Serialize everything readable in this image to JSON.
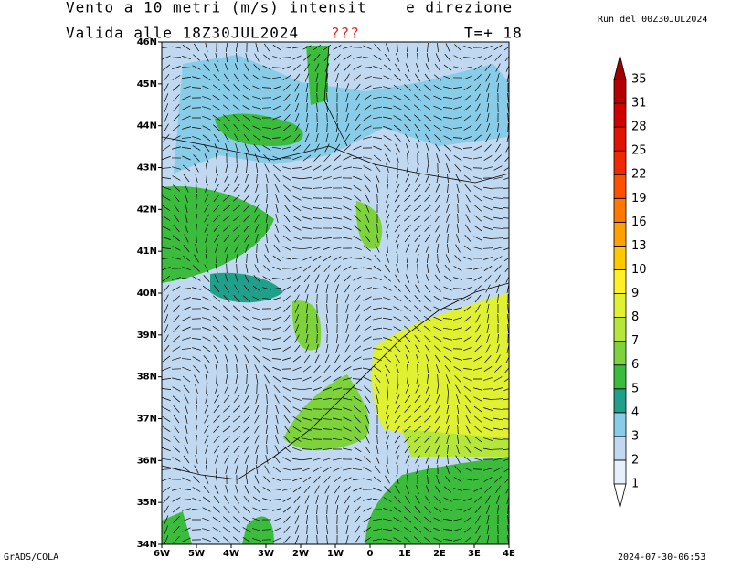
{
  "header": {
    "title": "Vento a 10 metri (m/s) intensit    e direzione",
    "valid": "Valida alle 18Z30JUL2024",
    "flag": "???",
    "step": "T=+ 18",
    "run": "Run del 00Z30JUL2024"
  },
  "map": {
    "lat_labels": [
      "46N",
      "45N",
      "44N",
      "43N",
      "42N",
      "41N",
      "40N",
      "39N",
      "38N",
      "37N",
      "36N",
      "35N",
      "34N"
    ],
    "lon_labels": [
      "6W",
      "5W",
      "4W",
      "3W",
      "2W",
      "1W",
      "0",
      "1E",
      "2E",
      "3E",
      "4E"
    ]
  },
  "colorbar": {
    "levels": [
      1,
      2,
      3,
      4,
      5,
      6,
      7,
      8,
      9,
      10,
      13,
      16,
      19,
      22,
      25,
      28,
      31,
      35
    ],
    "colors": [
      "#e6f0fa",
      "#c0d8f0",
      "#88cce8",
      "#20a08a",
      "#3cbc3c",
      "#7ed23c",
      "#b4e63c",
      "#e0f032",
      "#fff028",
      "#ffc800",
      "#ffa000",
      "#ff7800",
      "#ff5000",
      "#f02800",
      "#e01400",
      "#d00000",
      "#b40000"
    ],
    "over_color": "#a00000",
    "under_color": "#ffffff"
  },
  "footer": {
    "left": "GrADS/COLA",
    "right": "2024-07-30-06:53"
  }
}
